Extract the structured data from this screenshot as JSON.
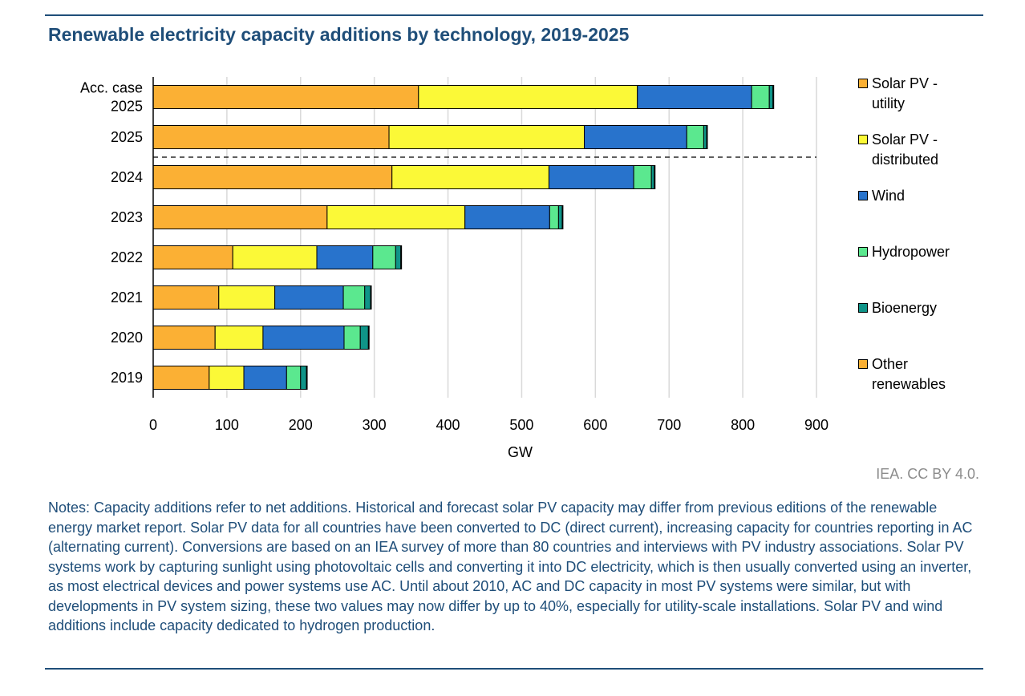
{
  "header": {
    "title": "Renewable electricity capacity additions by technology, 2019-2025"
  },
  "chart_data": {
    "type": "bar",
    "orientation": "horizontal",
    "stacked": true,
    "title": "Renewable electricity capacity additions by technology, 2019-2025",
    "xlabel": "GW",
    "ylabel": "",
    "xlim": [
      0,
      900
    ],
    "xticks": [
      0,
      100,
      200,
      300,
      400,
      500,
      600,
      700,
      800,
      900
    ],
    "grid": "vertical",
    "legend_position": "right",
    "categories": [
      "Acc. case 2025",
      "2025",
      "2024",
      "2023",
      "2022",
      "2021",
      "2020",
      "2019"
    ],
    "category_lines": [
      [
        "Acc. case",
        "2025"
      ],
      [
        "2025"
      ],
      [
        "2024"
      ],
      [
        "2023"
      ],
      [
        "2022"
      ],
      [
        "2021"
      ],
      [
        "2020"
      ],
      [
        "2019"
      ]
    ],
    "separator_after_index": 1,
    "series": [
      {
        "name": "Solar PV - utility",
        "legend_lines": [
          "Solar PV -",
          "utility"
        ],
        "color": "#fbb034",
        "values": [
          360,
          320,
          324,
          236,
          108,
          89,
          84,
          76
        ]
      },
      {
        "name": "Solar PV - distributed",
        "legend_lines": [
          "Solar PV -",
          "distributed"
        ],
        "color": "#fbf937",
        "values": [
          297,
          265,
          213,
          187,
          114,
          76,
          65,
          47
        ]
      },
      {
        "name": "Wind",
        "legend_lines": [
          "Wind"
        ],
        "color": "#2873cc",
        "values": [
          155,
          139,
          115,
          115,
          76,
          93,
          110,
          58
        ]
      },
      {
        "name": "Hydropower",
        "legend_lines": [
          "Hydropower"
        ],
        "color": "#5be88f",
        "values": [
          24,
          23,
          24,
          12,
          31,
          29,
          22,
          19
        ]
      },
      {
        "name": "Bioenergy",
        "legend_lines": [
          "Bioenergy"
        ],
        "color": "#0f9488",
        "values": [
          5,
          4,
          4,
          5,
          7,
          8,
          11,
          8
        ]
      },
      {
        "name": "Other renewables",
        "legend_lines": [
          "Other",
          "renewables"
        ],
        "color": "#fbb034",
        "values": [
          1,
          1,
          1,
          1,
          1,
          1,
          1,
          1
        ]
      }
    ]
  },
  "footer": {
    "source": "IEA. CC BY 4.0.",
    "notes": "Notes: Capacity additions refer to net additions. Historical and forecast solar PV capacity may differ from previous editions of the renewable energy market report. Solar PV data for all countries have been converted to DC (direct current), increasing capacity for countries reporting in AC (alternating current). Conversions are based on an IEA survey of more than 80 countries and interviews with PV industry associations. Solar PV systems work by capturing sunlight using photovoltaic cells and converting it into DC electricity, which is then usually converted using an inverter, as most electrical devices and power systems use AC. Until about 2010, AC and DC capacity in most PV systems were similar, but with developments in PV system sizing, these two values may now differ by up to 40%, especially for utility-scale installations. Solar PV and wind additions include capacity dedicated to hydrogen production."
  }
}
